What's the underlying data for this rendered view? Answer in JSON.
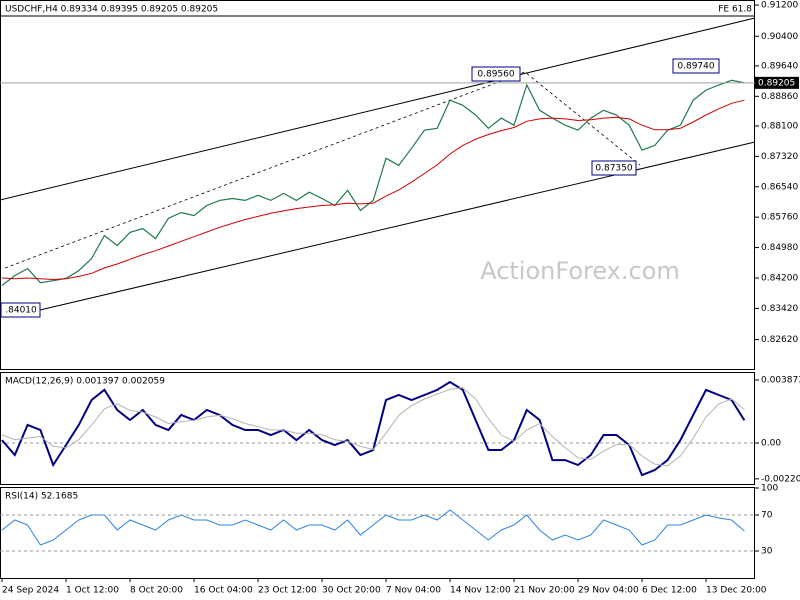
{
  "chart_data": [
    {
      "type": "line",
      "title": "USDCHF,H4  0.89334 0.89395 0.89205 0.89205",
      "watermark": "ActionForex.com",
      "annotations": [
        "0.89560",
        "0.89740",
        "0.87350",
        ".84010",
        "FE 61.8"
      ],
      "last_price": 0.89205,
      "ylim": [
        0.8184,
        0.9133
      ],
      "yticks": [
        {
          "value": 0.912,
          "label": "0.91200"
        },
        {
          "value": 0.904,
          "label": "0.90400"
        },
        {
          "value": 0.8964,
          "label": "0.89640"
        },
        {
          "value": 0.8886,
          "label": "0.88860"
        },
        {
          "value": 0.881,
          "label": "0.88100"
        },
        {
          "value": 0.8732,
          "label": "0.87320"
        },
        {
          "value": 0.8654,
          "label": "0.86540"
        },
        {
          "value": 0.8576,
          "label": "0.85760"
        },
        {
          "value": 0.8498,
          "label": "0.84980"
        },
        {
          "value": 0.842,
          "label": "0.84200"
        },
        {
          "value": 0.8342,
          "label": "0.83420"
        },
        {
          "value": 0.8262,
          "label": "0.82620"
        }
      ],
      "series": [
        {
          "color": "#1f7a4c",
          "values": [
            0.8401,
            0.8426,
            0.8444,
            0.8408,
            0.8413,
            0.8419,
            0.8439,
            0.847,
            0.8529,
            0.8503,
            0.8537,
            0.8547,
            0.8521,
            0.8573,
            0.8588,
            0.858,
            0.8606,
            0.8619,
            0.8624,
            0.8619,
            0.8632,
            0.8619,
            0.8637,
            0.8619,
            0.864,
            0.8624,
            0.8606,
            0.8645,
            0.8593,
            0.8619,
            0.8727,
            0.8709,
            0.8753,
            0.8799,
            0.8804,
            0.8876,
            0.8863,
            0.8838,
            0.8804,
            0.883,
            0.8812,
            0.8915,
            0.885,
            0.883,
            0.8812,
            0.8799,
            0.883,
            0.885,
            0.8838,
            0.8812,
            0.8748,
            0.876,
            0.8799,
            0.8812,
            0.8876,
            0.8902,
            0.8915,
            0.8927,
            0.89205
          ]
        },
        {
          "color": "#d00000",
          "values": [
            0.842,
            0.8418,
            0.842,
            0.8418,
            0.8416,
            0.8418,
            0.8424,
            0.8432,
            0.8446,
            0.8456,
            0.8468,
            0.848,
            0.849,
            0.8502,
            0.8514,
            0.8526,
            0.8538,
            0.855,
            0.856,
            0.857,
            0.8578,
            0.8586,
            0.8592,
            0.8598,
            0.8602,
            0.8606,
            0.8608,
            0.8612,
            0.861,
            0.8612,
            0.863,
            0.8646,
            0.8666,
            0.8688,
            0.871,
            0.8738,
            0.876,
            0.8776,
            0.8788,
            0.8798,
            0.8806,
            0.8822,
            0.8828,
            0.883,
            0.8828,
            0.8824,
            0.8826,
            0.883,
            0.8832,
            0.8828,
            0.8812,
            0.88,
            0.88,
            0.8804,
            0.882,
            0.8838,
            0.8854,
            0.8868,
            0.8876
          ]
        }
      ]
    },
    {
      "type": "line",
      "title": "MACD(12,26,9) 0.001397 0.002059",
      "ylim": [
        -0.00258,
        0.0043
      ],
      "yticks": [
        0.003873,
        {
          "value": 0,
          "label": "0.00"
        },
        -0.002201
      ],
      "series": [
        {
          "color": "#000080",
          "values": [
            0.00018,
            -0.00074,
            0.00111,
            0.0008,
            -0.00135,
            -0.00012,
            0.00111,
            0.00264,
            0.00326,
            0.00203,
            0.00141,
            0.00203,
            0.00111,
            0.0008,
            0.00172,
            0.00141,
            0.00203,
            0.00172,
            0.00111,
            0.0008,
            0.0008,
            0.00049,
            0.0008,
            0.00018,
            0.0008,
            0.00018,
            -0.00012,
            0.00018,
            -0.00074,
            -0.00043,
            0.00264,
            0.00295,
            0.00264,
            0.00295,
            0.00326,
            0.00375,
            0.00326,
            0.00141,
            -0.00043,
            -0.00043,
            0.00018,
            0.00203,
            0.00141,
            -0.00105,
            -0.00105,
            -0.00135,
            -0.00074,
            0.00049,
            0.00049,
            -0.00012,
            -0.00197,
            -0.00166,
            -0.00105,
            0.00018,
            0.00172,
            0.00326,
            0.00295,
            0.00264,
            0.001397
          ]
        },
        {
          "color": "#b4b4b4",
          "values": [
            0.0005,
            0.0002,
            0.0003,
            0.0004,
            -0.0002,
            -0.0003,
            0.0002,
            0.0011,
            0.0021,
            0.0024,
            0.002,
            0.0019,
            0.0016,
            0.0012,
            0.0013,
            0.0014,
            0.0016,
            0.0017,
            0.0015,
            0.0012,
            0.001,
            0.0008,
            0.0008,
            0.0006,
            0.0006,
            0.0005,
            0.0002,
            0.0001,
            -0.0002,
            -0.0004,
            0.0006,
            0.0017,
            0.0023,
            0.0027,
            0.003,
            0.0033,
            0.0034,
            0.0027,
            0.0015,
            0.0005,
            0.0001,
            0.0008,
            0.0012,
            0.0004,
            -0.0003,
            -0.0009,
            -0.001,
            -0.0005,
            -0.0001,
            -0.0001,
            -0.0008,
            -0.0013,
            -0.0014,
            -0.0008,
            0.0003,
            0.0016,
            0.0024,
            0.0027,
            0.002059
          ]
        }
      ]
    },
    {
      "type": "line",
      "title": "RSI(14) 52.1685",
      "ylim": [
        0,
        100
      ],
      "yticks": [
        100,
        70,
        30
      ],
      "categories": [
        "24 Sep 2024",
        null,
        null,
        null,
        null,
        "1 Oct 12:00",
        null,
        null,
        null,
        null,
        "8 Oct 20:00",
        null,
        null,
        null,
        null,
        "16 Oct 04:00",
        null,
        null,
        null,
        null,
        "23 Oct 12:00",
        null,
        null,
        null,
        null,
        "30 Oct 20:00",
        null,
        null,
        null,
        null,
        "7 Nov 04:00",
        null,
        null,
        null,
        null,
        "14 Nov 12:00",
        null,
        null,
        null,
        null,
        "21 Nov 20:00",
        null,
        null,
        null,
        null,
        "29 Nov 04:00",
        null,
        null,
        null,
        null,
        "6 Dec 12:00",
        null,
        null,
        null,
        null,
        "13 Dec 20:00",
        null,
        null,
        null
      ],
      "series": [
        {
          "color": "#2e86de",
          "values": [
            53.3,
            64.4,
            58.9,
            36.7,
            42.2,
            53.3,
            64.4,
            70,
            70,
            53.3,
            64.4,
            58.9,
            53.3,
            64.4,
            70,
            64.4,
            64.4,
            58.9,
            58.9,
            64.4,
            58.9,
            53.3,
            64.4,
            53.3,
            58.9,
            58.9,
            53.3,
            64.4,
            47.8,
            58.9,
            70,
            64.4,
            64.4,
            70,
            64.4,
            75.6,
            64.4,
            53.3,
            42.2,
            53.3,
            58.9,
            70,
            53.3,
            42.2,
            47.8,
            42.2,
            47.8,
            64.4,
            58.9,
            53.3,
            36.7,
            42.2,
            58.9,
            58.9,
            64.4,
            70,
            66.7,
            64.4,
            52.2
          ]
        }
      ]
    }
  ]
}
